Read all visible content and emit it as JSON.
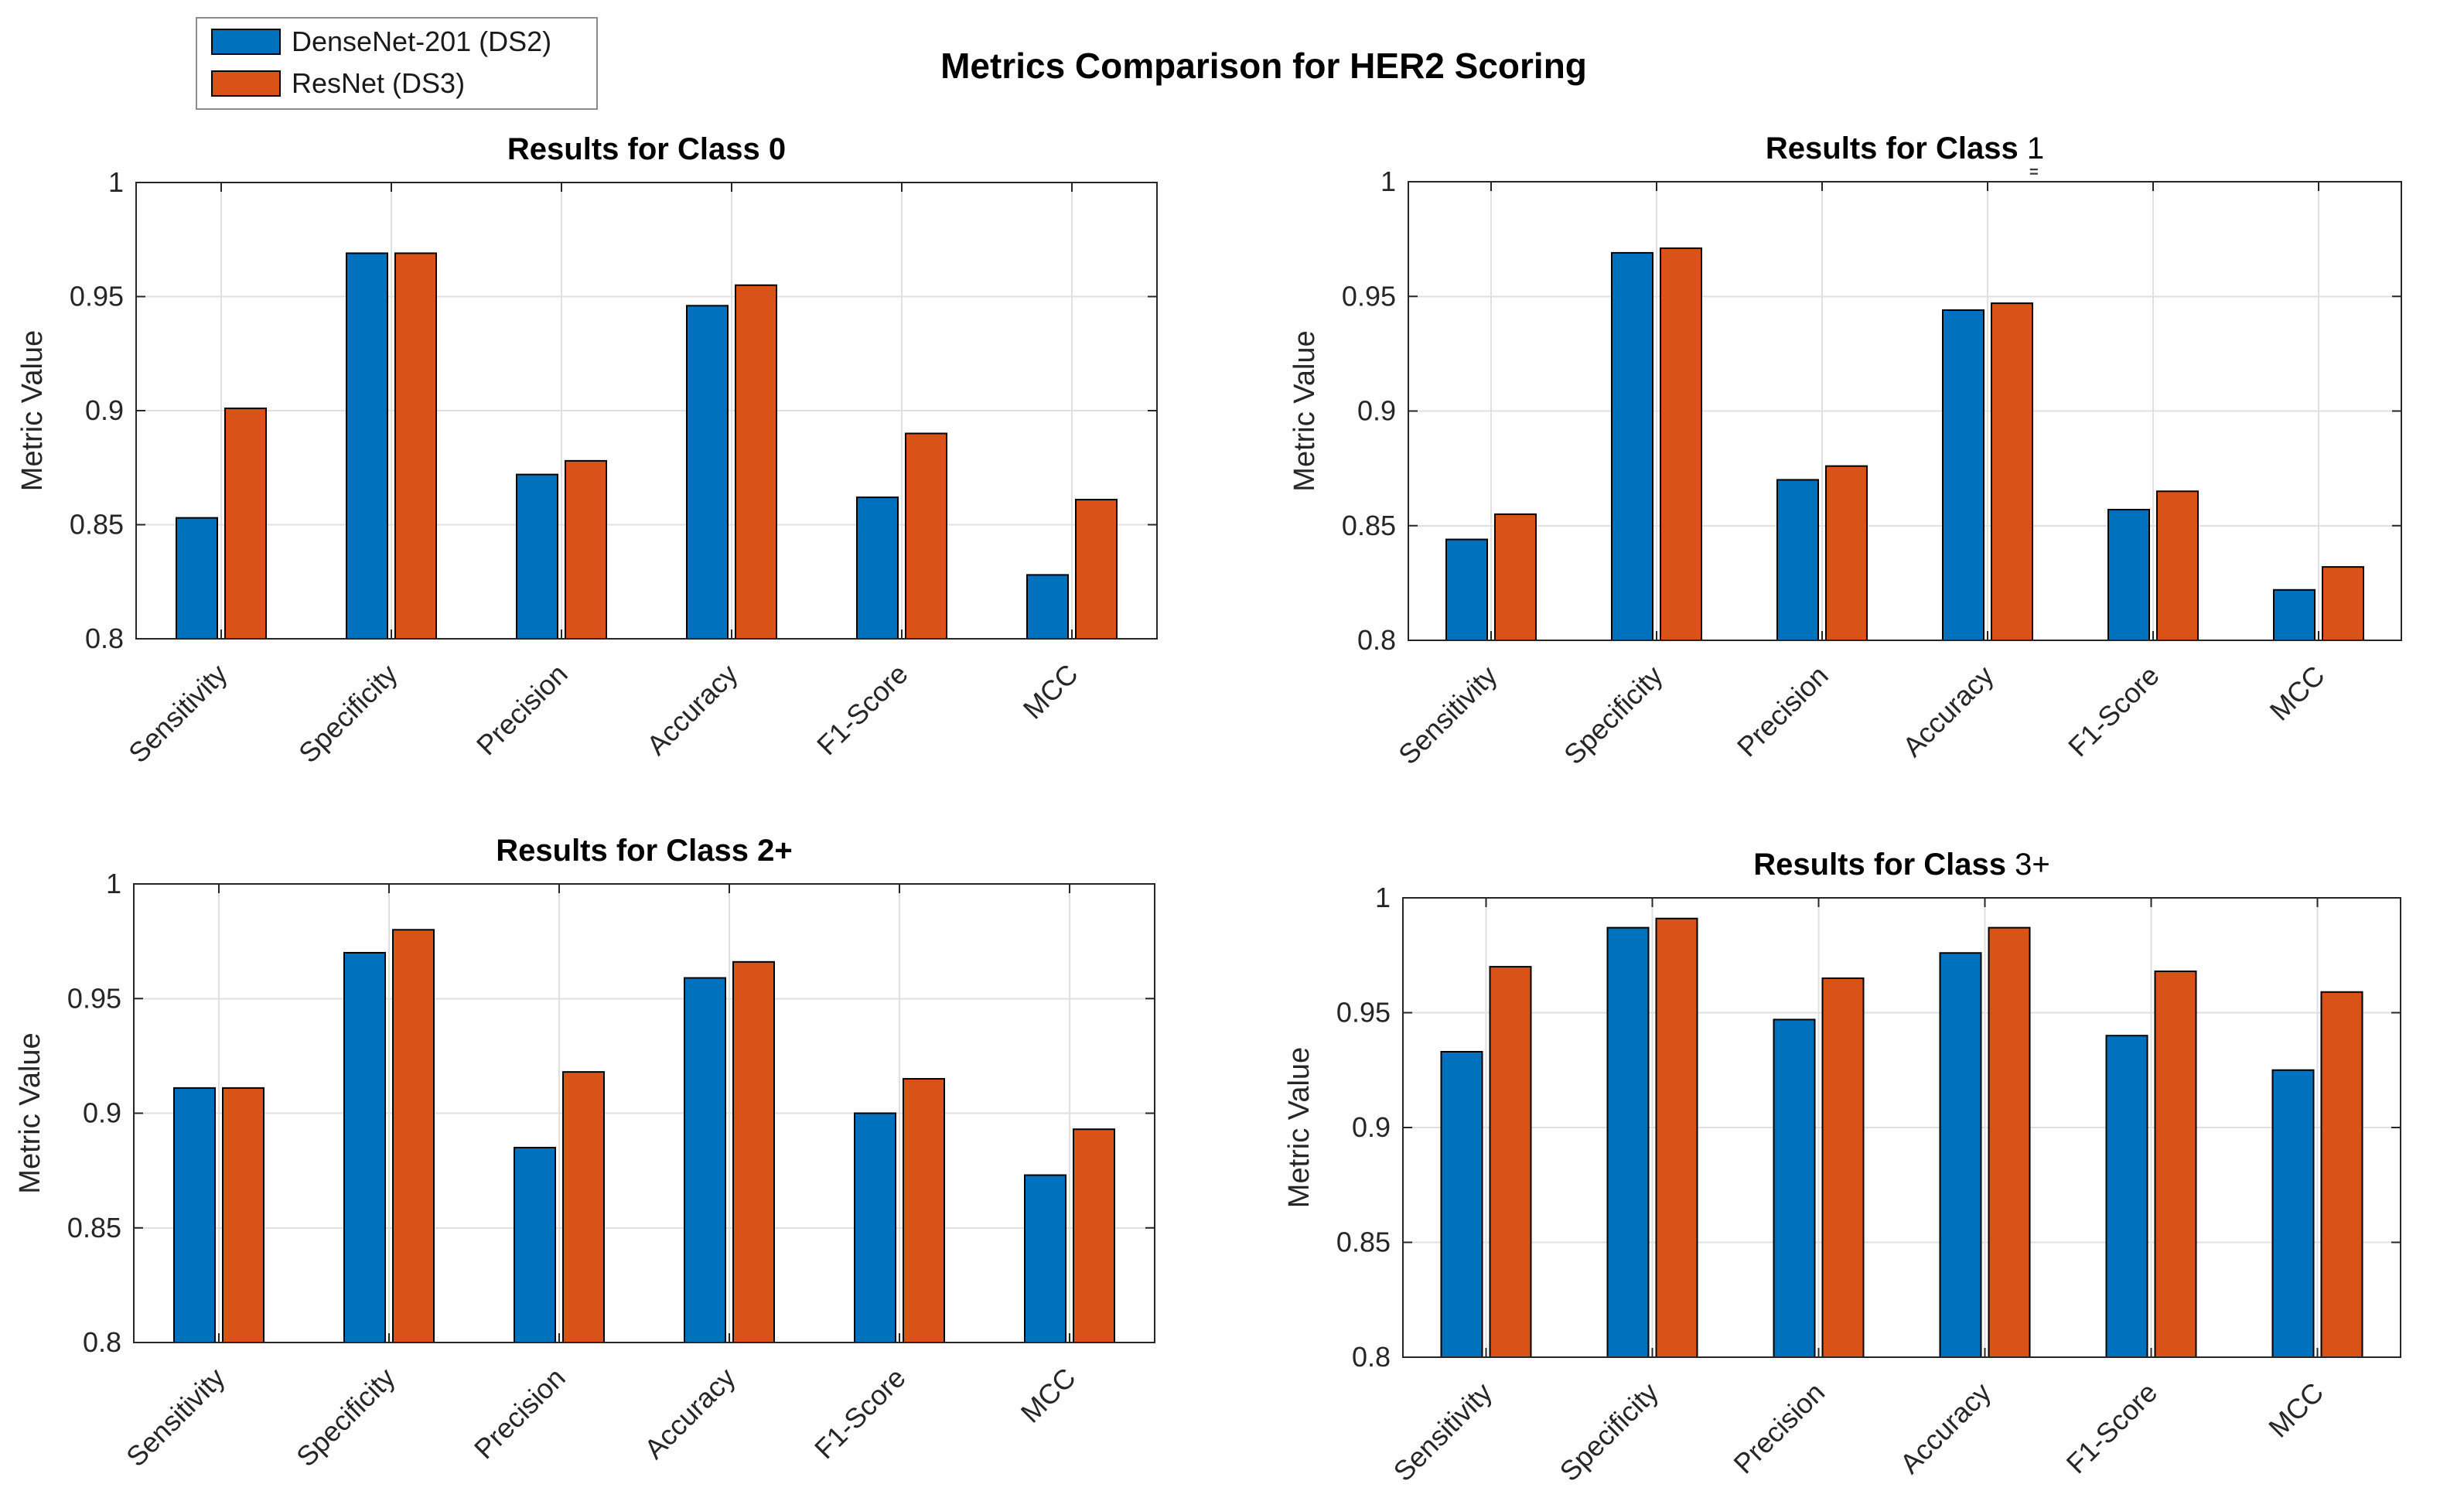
{
  "figure": {
    "title": "Metrics Comparison for HER2 Scoring",
    "background": "#ffffff",
    "artifact_glyph": "="
  },
  "legend": {
    "entries": [
      {
        "name": "densenet",
        "label": "DenseNet-201 (DS2)",
        "color": "#0072BD"
      },
      {
        "name": "resnet",
        "label": "ResNet (DS3)",
        "color": "#D95319"
      }
    ]
  },
  "axes_style": {
    "axis_color": "#262626",
    "grid_color": "#e0e0e0",
    "bar_edge_color": "#000000",
    "title_color": "#000000",
    "tick_label_color": "#262626"
  },
  "chart_data": [
    {
      "type": "bar",
      "id": "class-0",
      "title_prefix": "Results for Class ",
      "title_suffix": "0",
      "suffix_bold": true,
      "ylabel": "Metric Value",
      "categories": [
        "Sensitivity",
        "Specificity",
        "Precision",
        "Accuracy",
        "F1-Score",
        "MCC"
      ],
      "ylim": [
        0.8,
        1.0
      ],
      "yticks": [
        0.8,
        0.85,
        0.9,
        0.95,
        1.0
      ],
      "ytick_labels": [
        "0.8",
        "0.85",
        "0.9",
        "0.95",
        "1"
      ],
      "grid": true,
      "series": [
        {
          "name": "DenseNet-201 (DS2)",
          "color": "#0072BD",
          "values": [
            0.853,
            0.969,
            0.872,
            0.946,
            0.862,
            0.828
          ]
        },
        {
          "name": "ResNet (DS3)",
          "color": "#D95319",
          "values": [
            0.901,
            0.969,
            0.878,
            0.955,
            0.89,
            0.861
          ]
        }
      ]
    },
    {
      "type": "bar",
      "id": "class-1",
      "title_prefix": "Results for Class ",
      "title_suffix": "1",
      "suffix_bold": false,
      "ylabel": "Metric Value",
      "categories": [
        "Sensitivity",
        "Specificity",
        "Precision",
        "Accuracy",
        "F1-Score",
        "MCC"
      ],
      "ylim": [
        0.8,
        1.0
      ],
      "yticks": [
        0.8,
        0.85,
        0.9,
        0.95,
        1.0
      ],
      "ytick_labels": [
        "0.8",
        "0.85",
        "0.9",
        "0.95",
        "1"
      ],
      "grid": true,
      "series": [
        {
          "name": "DenseNet-201 (DS2)",
          "color": "#0072BD",
          "values": [
            0.844,
            0.969,
            0.87,
            0.944,
            0.857,
            0.822
          ]
        },
        {
          "name": "ResNet (DS3)",
          "color": "#D95319",
          "values": [
            0.855,
            0.971,
            0.876,
            0.947,
            0.865,
            0.832
          ]
        }
      ]
    },
    {
      "type": "bar",
      "id": "class-2plus",
      "title_prefix": "Results for Class ",
      "title_suffix": "2+",
      "suffix_bold": true,
      "ylabel": "Metric Value",
      "categories": [
        "Sensitivity",
        "Specificity",
        "Precision",
        "Accuracy",
        "F1-Score",
        "MCC"
      ],
      "ylim": [
        0.8,
        1.0
      ],
      "yticks": [
        0.8,
        0.85,
        0.9,
        0.95,
        1.0
      ],
      "ytick_labels": [
        "0.8",
        "0.85",
        "0.9",
        "0.95",
        "1"
      ],
      "grid": true,
      "series": [
        {
          "name": "DenseNet-201 (DS2)",
          "color": "#0072BD",
          "values": [
            0.911,
            0.97,
            0.885,
            0.959,
            0.9,
            0.873
          ]
        },
        {
          "name": "ResNet (DS3)",
          "color": "#D95319",
          "values": [
            0.911,
            0.98,
            0.918,
            0.966,
            0.915,
            0.893
          ]
        }
      ]
    },
    {
      "type": "bar",
      "id": "class-3plus",
      "title_prefix": "Results for Class ",
      "title_suffix": "3+",
      "suffix_bold": false,
      "ylabel": "Metric Value",
      "categories": [
        "Sensitivity",
        "Specificity",
        "Precision",
        "Accuracy",
        "F1-Score",
        "MCC"
      ],
      "ylim": [
        0.8,
        1.0
      ],
      "yticks": [
        0.8,
        0.85,
        0.9,
        0.95,
        1.0
      ],
      "ytick_labels": [
        "0.8",
        "0.85",
        "0.9",
        "0.95",
        "1"
      ],
      "grid": true,
      "series": [
        {
          "name": "DenseNet-201 (DS2)",
          "color": "#0072BD",
          "values": [
            0.933,
            0.987,
            0.947,
            0.976,
            0.94,
            0.925
          ]
        },
        {
          "name": "ResNet (DS3)",
          "color": "#D95319",
          "values": [
            0.97,
            0.991,
            0.965,
            0.987,
            0.968,
            0.959
          ]
        }
      ]
    }
  ]
}
